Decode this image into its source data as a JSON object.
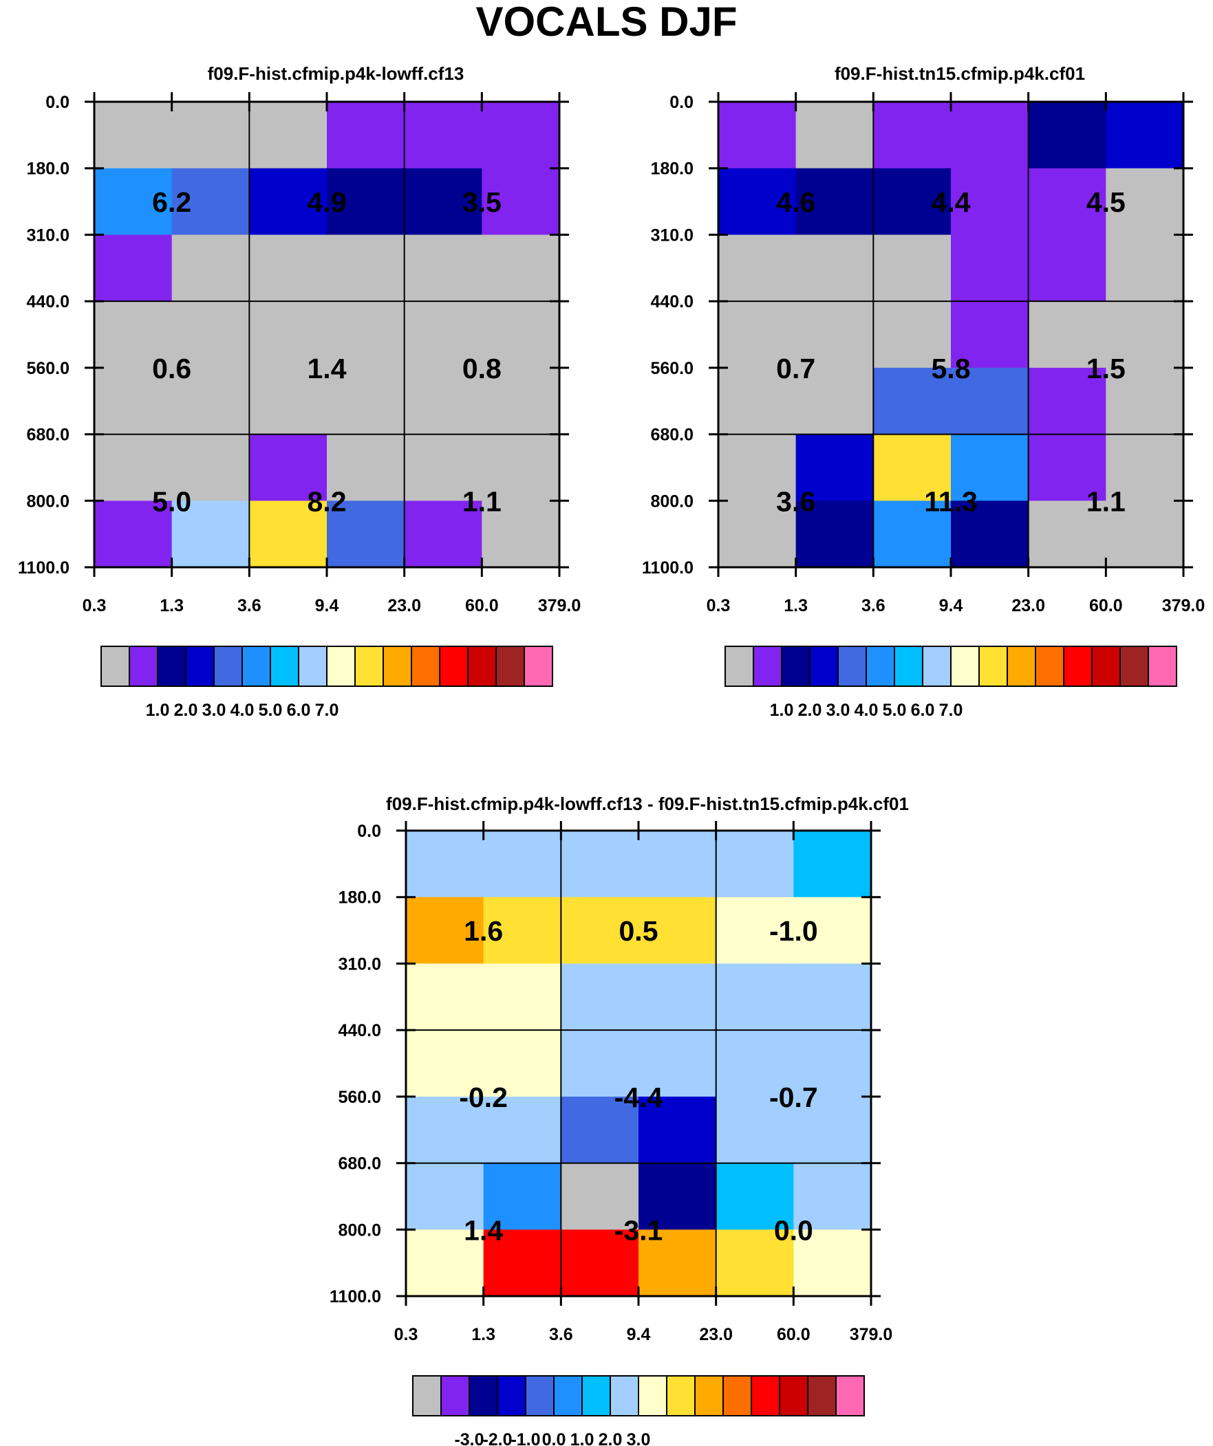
{
  "title": "VOCALS DJF",
  "palette": [
    "#c0c0c0",
    "#8224ef",
    "#000091",
    "#0000cd",
    "#4169e1",
    "#1e90ff",
    "#00bfff",
    "#a2cfff",
    "#ffffcc",
    "#ffe033",
    "#ffaa00",
    "#ff6f00",
    "#ff0000",
    "#cc0000",
    "#9e2424",
    "#ff69b4"
  ],
  "chart_data": [
    {
      "type": "heatmap",
      "title": "f09.F-hist.cfmip.p4k-lowff.cf13",
      "xlabel": "",
      "ylabel": "",
      "x_ticks": [
        "0.3",
        "1.3",
        "3.6",
        "9.4",
        "23.0",
        "60.0",
        "379.0"
      ],
      "y_ticks": [
        "0.0",
        "180.0",
        "310.0",
        "440.0",
        "560.0",
        "680.0",
        "800.0",
        "1100.0"
      ],
      "cell_colors": [
        [
          0,
          0,
          0,
          1,
          1,
          1
        ],
        [
          5,
          4,
          3,
          2,
          2,
          1
        ],
        [
          1,
          0,
          0,
          0,
          0,
          0
        ],
        [
          0,
          0,
          0,
          0,
          0,
          0
        ],
        [
          0,
          0,
          0,
          0,
          0,
          0
        ],
        [
          0,
          0,
          1,
          0,
          0,
          0
        ],
        [
          1,
          7,
          9,
          4,
          1,
          0
        ]
      ],
      "values": [
        [
          "6.2",
          "4.9",
          "3.5"
        ],
        [
          "0.6",
          "1.4",
          "0.8"
        ],
        [
          "5.0",
          "8.2",
          "1.1"
        ]
      ],
      "colorbar_labels": [
        "1.0",
        "2.0",
        "3.0",
        "4.0",
        "5.0",
        "6.0",
        "7.0"
      ]
    },
    {
      "type": "heatmap",
      "title": "f09.F-hist.tn15.cfmip.p4k.cf01",
      "xlabel": "",
      "ylabel": "",
      "x_ticks": [
        "0.3",
        "1.3",
        "3.6",
        "9.4",
        "23.0",
        "60.0",
        "379.0"
      ],
      "y_ticks": [
        "0.0",
        "180.0",
        "310.0",
        "440.0",
        "560.0",
        "680.0",
        "800.0",
        "1100.0"
      ],
      "cell_colors": [
        [
          1,
          0,
          1,
          1,
          2,
          3
        ],
        [
          3,
          2,
          2,
          1,
          1,
          0
        ],
        [
          0,
          0,
          0,
          1,
          1,
          0
        ],
        [
          0,
          0,
          0,
          1,
          0,
          0
        ],
        [
          0,
          0,
          4,
          4,
          1,
          0
        ],
        [
          0,
          3,
          9,
          5,
          1,
          0
        ],
        [
          0,
          2,
          5,
          2,
          0,
          0
        ]
      ],
      "values": [
        [
          "4.6",
          "4.4",
          "4.5"
        ],
        [
          "0.7",
          "5.8",
          "1.5"
        ],
        [
          "3.6",
          "11.3",
          "1.1"
        ]
      ],
      "colorbar_labels": [
        "1.0",
        "2.0",
        "3.0",
        "4.0",
        "5.0",
        "6.0",
        "7.0"
      ]
    },
    {
      "type": "heatmap",
      "title": "f09.F-hist.cfmip.p4k-lowff.cf13 - f09.F-hist.tn15.cfmip.p4k.cf01",
      "xlabel": "",
      "ylabel": "",
      "x_ticks": [
        "0.3",
        "1.3",
        "3.6",
        "9.4",
        "23.0",
        "60.0",
        "379.0"
      ],
      "y_ticks": [
        "0.0",
        "180.0",
        "310.0",
        "440.0",
        "560.0",
        "680.0",
        "800.0",
        "1100.0"
      ],
      "cell_colors": [
        [
          7,
          7,
          7,
          7,
          7,
          6
        ],
        [
          10,
          9,
          9,
          9,
          8,
          8
        ],
        [
          8,
          8,
          7,
          7,
          7,
          7
        ],
        [
          8,
          8,
          7,
          7,
          7,
          7
        ],
        [
          7,
          7,
          4,
          3,
          7,
          7
        ],
        [
          7,
          5,
          0,
          2,
          6,
          7
        ],
        [
          8,
          12,
          12,
          10,
          9,
          8
        ]
      ],
      "values": [
        [
          "1.6",
          "0.5",
          "-1.0"
        ],
        [
          "-0.2",
          "-4.4",
          "-0.7"
        ],
        [
          "1.4",
          "-3.1",
          "0.0"
        ]
      ],
      "colorbar_labels": [
        "-3.0",
        "-2.0",
        "-1.0",
        "0.0",
        "1.0",
        "2.0",
        "3.0"
      ]
    }
  ]
}
